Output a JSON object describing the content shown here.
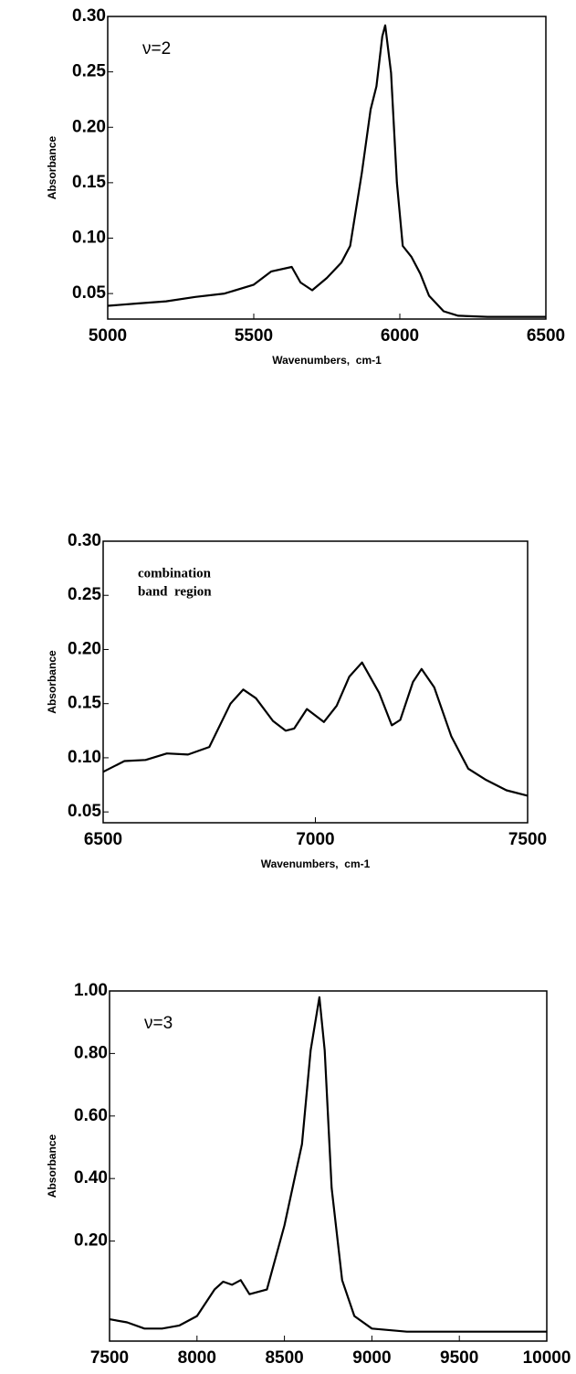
{
  "chart_data": [
    {
      "type": "line",
      "xlabel": "Wavenumbers,  cm-1",
      "ylabel": "Absorbance",
      "annotation": [
        "ν=2"
      ],
      "x": [
        5000,
        5100,
        5200,
        5300,
        5400,
        5500,
        5560,
        5630,
        5660,
        5700,
        5750,
        5800,
        5830,
        5870,
        5900,
        5920,
        5940,
        5950,
        5970,
        5990,
        6010,
        6040,
        6070,
        6100,
        6150,
        6200,
        6300,
        6400,
        6500
      ],
      "values": [
        0.039,
        0.041,
        0.043,
        0.047,
        0.05,
        0.058,
        0.07,
        0.074,
        0.06,
        0.053,
        0.064,
        0.078,
        0.093,
        0.159,
        0.216,
        0.237,
        0.282,
        0.292,
        0.249,
        0.15,
        0.093,
        0.083,
        0.068,
        0.048,
        0.034,
        0.03,
        0.029,
        0.029,
        0.029
      ],
      "color": "#000000",
      "xlim": [
        5000,
        6500
      ],
      "ylim": [
        0.027,
        0.3
      ],
      "xticks": [
        5000,
        5500,
        6000,
        6500
      ],
      "yticks": [
        {
          "value": 0.05,
          "label": "0.05"
        },
        {
          "value": 0.1,
          "label": "0.10"
        },
        {
          "value": 0.15,
          "label": "0.15"
        },
        {
          "value": 0.2,
          "label": "0.20"
        },
        {
          "value": 0.25,
          "label": "0.25"
        },
        {
          "value": 0.3,
          "label": "0.30"
        }
      ]
    },
    {
      "type": "line",
      "xlabel": "Wavenumbers,  cm-1",
      "ylabel": "Absorbance",
      "annotation": [
        "combination",
        "band  region"
      ],
      "x": [
        6500,
        6550,
        6600,
        6650,
        6700,
        6750,
        6800,
        6830,
        6860,
        6900,
        6930,
        6950,
        6980,
        7020,
        7050,
        7080,
        7110,
        7150,
        7180,
        7200,
        7230,
        7250,
        7280,
        7320,
        7360,
        7400,
        7450,
        7500
      ],
      "values": [
        0.087,
        0.097,
        0.098,
        0.104,
        0.103,
        0.11,
        0.15,
        0.163,
        0.155,
        0.134,
        0.125,
        0.127,
        0.145,
        0.133,
        0.148,
        0.175,
        0.188,
        0.16,
        0.13,
        0.135,
        0.17,
        0.182,
        0.165,
        0.12,
        0.09,
        0.08,
        0.07,
        0.065
      ],
      "color": "#000000",
      "xlim": [
        6500,
        7500
      ],
      "ylim": [
        0.04,
        0.3
      ],
      "xticks": [
        6500,
        7000,
        7500
      ],
      "yticks": [
        {
          "value": 0.05,
          "label": "0.05"
        },
        {
          "value": 0.1,
          "label": "0.10"
        },
        {
          "value": 0.15,
          "label": "0.15"
        },
        {
          "value": 0.2,
          "label": "0.20"
        },
        {
          "value": 0.25,
          "label": "0.25"
        },
        {
          "value": 0.3,
          "label": "0.30"
        }
      ]
    },
    {
      "type": "line",
      "xlabel": "Wavenumbers,  cm-1",
      "ylabel": "Absorbance",
      "annotation": [
        "ν=3"
      ],
      "x": [
        7500,
        7600,
        7700,
        7800,
        7900,
        8000,
        8100,
        8150,
        8200,
        8250,
        8300,
        8400,
        8500,
        8600,
        8650,
        8700,
        8730,
        8770,
        8830,
        8900,
        9000,
        9200,
        9500,
        10000
      ],
      "values": [
        -0.05,
        -0.06,
        -0.08,
        -0.08,
        -0.07,
        -0.04,
        0.045,
        0.07,
        0.06,
        0.075,
        0.03,
        0.045,
        0.25,
        0.51,
        0.81,
        0.98,
        0.81,
        0.37,
        0.075,
        -0.04,
        -0.08,
        -0.09,
        -0.09,
        -0.09
      ],
      "color": "#000000",
      "xlim": [
        7500,
        10000
      ],
      "ylim": [
        -0.12,
        1.0
      ],
      "xticks": [
        7500,
        8000,
        8500,
        9000,
        9500,
        10000
      ],
      "yticks": [
        {
          "value": 0.2,
          "label": "0.20"
        },
        {
          "value": 0.4,
          "label": "0.40"
        },
        {
          "value": 0.6,
          "label": "0.60"
        },
        {
          "value": 0.8,
          "label": "0.80"
        },
        {
          "value": 1.0,
          "label": "1.00"
        }
      ]
    }
  ]
}
